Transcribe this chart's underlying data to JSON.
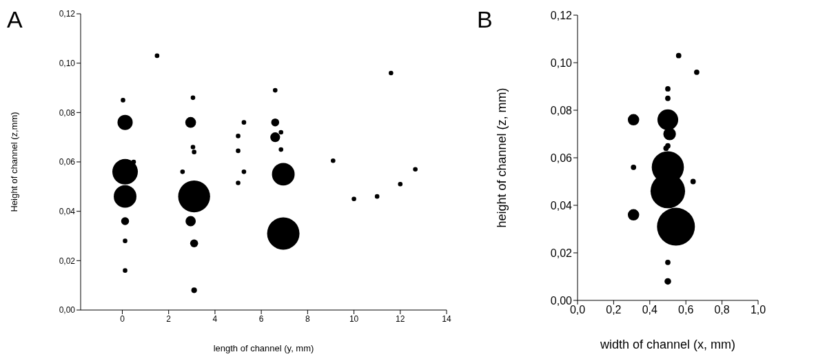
{
  "chart_data": [
    {
      "type": "bubble",
      "title": "A",
      "xlabel": "length of channel (y, mm)",
      "ylabel": "Height of channel (z,mm)",
      "color": "#000000",
      "x": [
        1.5,
        0.03,
        0.12,
        0.12,
        0.12,
        0.49,
        0.12,
        0.12,
        0.12,
        3.05,
        2.95,
        3.05,
        3.1,
        2.6,
        3.1,
        2.95,
        3.1,
        3.1,
        5.0,
        5.0,
        5.0,
        5.25,
        5.25,
        6.6,
        6.6,
        6.6,
        6.85,
        6.85,
        6.95,
        6.95,
        9.1,
        10.0,
        11.0,
        12.0,
        12.65,
        11.6
      ],
      "values": [
        0.103,
        0.085,
        0.076,
        0.056,
        0.046,
        0.06,
        0.036,
        0.028,
        0.016,
        0.086,
        0.076,
        0.066,
        0.064,
        0.056,
        0.046,
        0.036,
        0.027,
        0.008,
        0.0705,
        0.0645,
        0.0515,
        0.076,
        0.056,
        0.089,
        0.076,
        0.07,
        0.072,
        0.065,
        0.055,
        0.031,
        0.0605,
        0.045,
        0.046,
        0.051,
        0.057,
        0.096
      ],
      "sizes": [
        0.02,
        0.02,
        0.22,
        0.62,
        0.49,
        0.02,
        0.06,
        0.02,
        0.02,
        0.02,
        0.11,
        0.02,
        0.02,
        0.02,
        0.97,
        0.1,
        0.06,
        0.03,
        0.02,
        0.02,
        0.02,
        0.02,
        0.02,
        0.02,
        0.06,
        0.09,
        0.02,
        0.02,
        0.49,
        1,
        0.02,
        0.02,
        0.02,
        0.02,
        0.02,
        0.02
      ],
      "xlim": [
        -1.8,
        14
      ],
      "xticks": [
        0,
        2,
        4,
        6,
        8,
        10,
        12,
        14
      ],
      "ylim": [
        0,
        0.12
      ],
      "yticks": [
        {
          "value": 0,
          "label": "0,00"
        },
        {
          "value": 0.02,
          "label": "0,02"
        },
        {
          "value": 0.04,
          "label": "0,04"
        },
        {
          "value": 0.06,
          "label": "0,06"
        },
        {
          "value": 0.08,
          "label": "0,08"
        },
        {
          "value": 0.1,
          "label": "0,10"
        },
        {
          "value": 0.12,
          "label": "0,12"
        }
      ]
    },
    {
      "type": "bubble",
      "title": "B",
      "xlabel": "width of channel (x, mm)",
      "ylabel": "height of channel (z, mm)",
      "color": "#000000",
      "x": [
        0.31,
        0.31,
        0.31,
        0.56,
        0.66,
        0.5,
        0.5,
        0.5,
        0.51,
        0.5,
        0.49,
        0.5,
        0.5,
        0.545,
        0.64,
        0.5,
        0.5
      ],
      "values": [
        0.076,
        0.056,
        0.036,
        0.103,
        0.096,
        0.089,
        0.085,
        0.076,
        0.07,
        0.065,
        0.064,
        0.056,
        0.046,
        0.031,
        0.05,
        0.016,
        0.008
      ],
      "sizes": [
        0.09,
        0.02,
        0.09,
        0.02,
        0.02,
        0.02,
        0.02,
        0.3,
        0.11,
        0.02,
        0.02,
        0.72,
        0.83,
        1,
        0.02,
        0.02,
        0.03
      ],
      "xlim": [
        0,
        1
      ],
      "xticks": [
        {
          "value": 0,
          "label": "0,0"
        },
        {
          "value": 0.2,
          "label": "0,2"
        },
        {
          "value": 0.4,
          "label": "0,4"
        },
        {
          "value": 0.6,
          "label": "0,6"
        },
        {
          "value": 0.8,
          "label": "0,8"
        },
        {
          "value": 1,
          "label": "1,0"
        }
      ],
      "ylim": [
        0,
        0.12
      ],
      "yticks": [
        {
          "value": 0,
          "label": "0,00"
        },
        {
          "value": 0.02,
          "label": "0,02"
        },
        {
          "value": 0.04,
          "label": "0,04"
        },
        {
          "value": 0.06,
          "label": "0,06"
        },
        {
          "value": 0.08,
          "label": "0,08"
        },
        {
          "value": 0.1,
          "label": "0,10"
        },
        {
          "value": 0.12,
          "label": "0,12"
        }
      ]
    }
  ]
}
